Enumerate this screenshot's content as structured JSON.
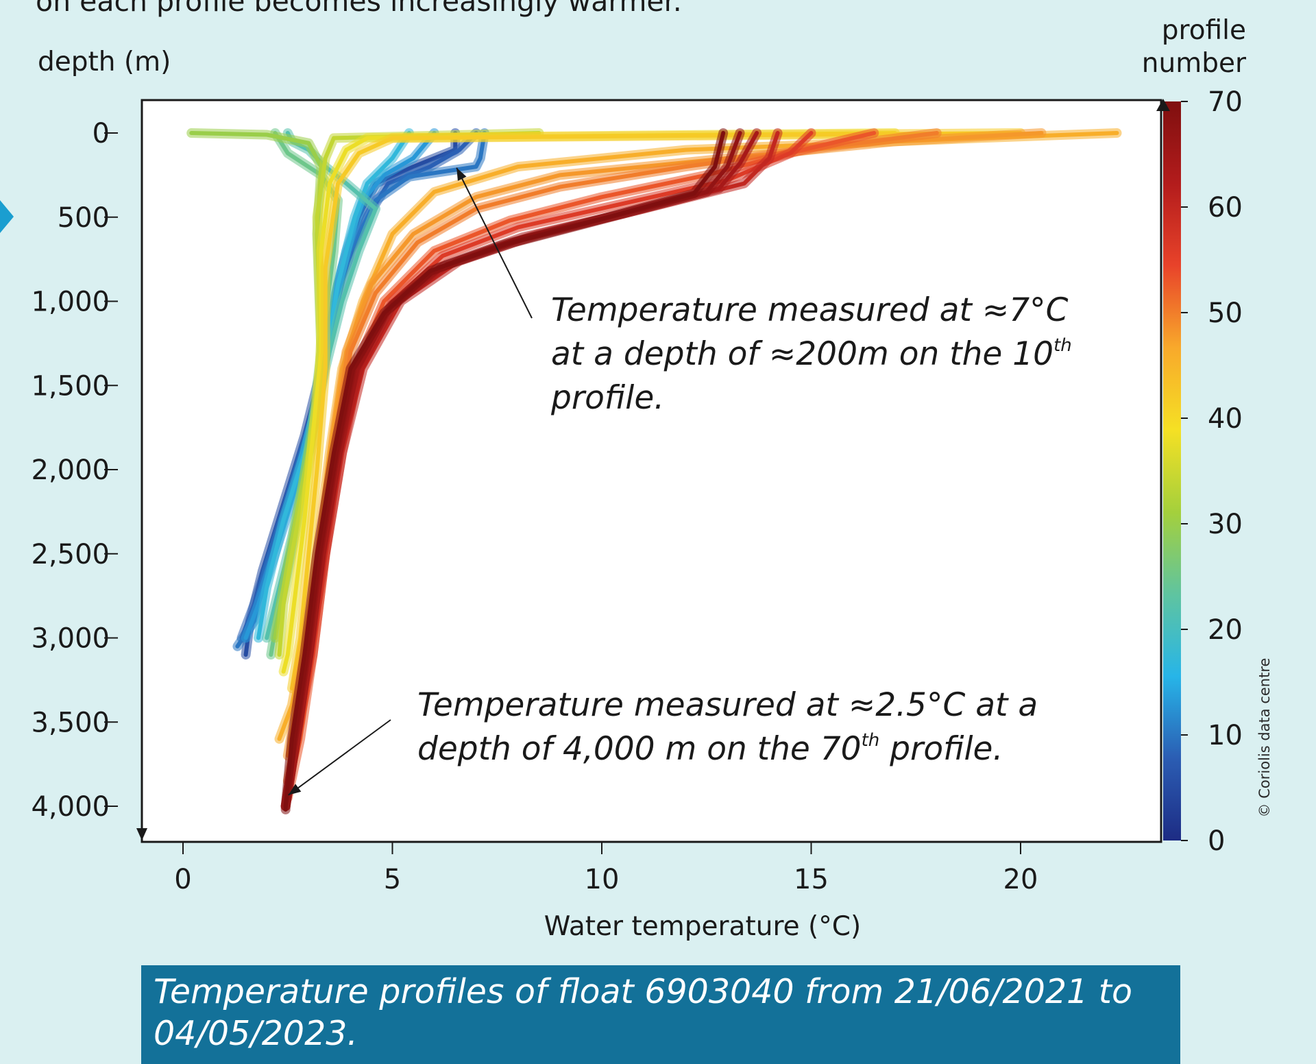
{
  "intro_text": "on each profile becomes increasingly warmer.",
  "caption": "Temperature profiles of float 6903040 from 21/06/2021 to 04/05/2023.",
  "credit": "© Coriolis data centre",
  "colors": {
    "background": "#daf0f1",
    "caption_bg": "#137199",
    "marker": "#1a9ed0",
    "colormap": [
      "#1d2c84",
      "#2b5db3",
      "#27b5e8",
      "#5fc4a0",
      "#a4d03c",
      "#f5e024",
      "#f8a92b",
      "#e8432a",
      "#b31c1c",
      "#7f0f0f"
    ]
  },
  "chart_data": {
    "type": "line",
    "xlabel": "Water temperature (°C)",
    "ylabel": "depth (m)",
    "xlim": [
      -1,
      23.3
    ],
    "ylim": [
      4200,
      -190
    ],
    "y_inverted": true,
    "x_ticks": [
      0,
      5,
      10,
      15,
      20
    ],
    "x_tick_labels": [
      "0",
      "5",
      "10",
      "15",
      "20"
    ],
    "y_ticks": [
      0,
      500,
      1000,
      1500,
      2000,
      2500,
      3000,
      3500,
      4000
    ],
    "y_tick_labels": [
      "0",
      "500",
      "1,000",
      "1,500",
      "2,000",
      "2,500",
      "3,000",
      "3,500",
      "4,000"
    ],
    "colorbar": {
      "label_line1": "profile",
      "label_line2": "number",
      "range": [
        0,
        70
      ],
      "ticks": [
        0,
        10,
        20,
        30,
        40,
        50,
        60,
        70
      ],
      "tick_labels": [
        "0",
        "10",
        "20",
        "30",
        "40",
        "50",
        "60",
        "70"
      ]
    },
    "profiles": [
      {
        "profile": 5,
        "points": [
          [
            6.5,
            0
          ],
          [
            6.5,
            100
          ],
          [
            5.5,
            200
          ],
          [
            4.6,
            300
          ],
          [
            4.2,
            500
          ],
          [
            3.8,
            800
          ],
          [
            3.4,
            1300
          ],
          [
            2.9,
            1800
          ],
          [
            2.4,
            2200
          ],
          [
            1.9,
            2600
          ],
          [
            1.6,
            2900
          ],
          [
            1.5,
            3100
          ]
        ]
      },
      {
        "profile": 8,
        "points": [
          [
            7,
            0
          ],
          [
            6.6,
            100
          ],
          [
            5.9,
            200
          ],
          [
            4.9,
            300
          ],
          [
            4.4,
            500
          ],
          [
            3.7,
            900
          ],
          [
            3.3,
            1500
          ],
          [
            2.6,
            2100
          ],
          [
            2.1,
            2500
          ],
          [
            1.7,
            2800
          ],
          [
            1.4,
            3000
          ]
        ]
      },
      {
        "profile": 10,
        "points": [
          [
            7.2,
            0
          ],
          [
            7.1,
            150
          ],
          [
            7,
            200
          ],
          [
            5.4,
            260
          ],
          [
            4.6,
            400
          ],
          [
            4,
            700
          ],
          [
            3.5,
            1200
          ],
          [
            3.1,
            1700
          ],
          [
            2.5,
            2200
          ],
          [
            2,
            2600
          ],
          [
            1.7,
            2900
          ],
          [
            1.3,
            3050
          ]
        ]
      },
      {
        "profile": 13,
        "points": [
          [
            6,
            0
          ],
          [
            5.5,
            150
          ],
          [
            4.8,
            250
          ],
          [
            4.3,
            400
          ],
          [
            3.9,
            700
          ],
          [
            3.5,
            1100
          ],
          [
            3.2,
            1600
          ],
          [
            2.7,
            2100
          ],
          [
            2.2,
            2500
          ],
          [
            1.8,
            2800
          ],
          [
            1.5,
            3000
          ]
        ]
      },
      {
        "profile": 17,
        "points": [
          [
            5.4,
            0
          ],
          [
            5,
            150
          ],
          [
            4.4,
            300
          ],
          [
            4.1,
            500
          ],
          [
            3.7,
            900
          ],
          [
            3.3,
            1500
          ],
          [
            2.9,
            1900
          ],
          [
            2.4,
            2300
          ],
          [
            2,
            2700
          ],
          [
            1.8,
            3000
          ]
        ]
      },
      {
        "profile": 22,
        "points": [
          [
            2.5,
            0
          ],
          [
            2.6,
            50
          ],
          [
            3,
            100
          ],
          [
            3.4,
            200
          ],
          [
            3.9,
            300
          ],
          [
            4.6,
            450
          ],
          [
            4.2,
            700
          ],
          [
            3.8,
            1000
          ],
          [
            3.4,
            1400
          ],
          [
            3,
            1900
          ],
          [
            2.6,
            2400
          ],
          [
            2.2,
            2800
          ],
          [
            2,
            3000
          ]
        ]
      },
      {
        "profile": 25,
        "points": [
          [
            2.2,
            0
          ],
          [
            2.5,
            120
          ],
          [
            3.3,
            250
          ],
          [
            3.7,
            400
          ],
          [
            3.6,
            700
          ],
          [
            3.4,
            1100
          ],
          [
            3.1,
            1700
          ],
          [
            2.8,
            2200
          ],
          [
            2.5,
            2600
          ],
          [
            2.2,
            2950
          ],
          [
            2.1,
            3100
          ]
        ]
      },
      {
        "profile": 30,
        "points": [
          [
            0.2,
            0
          ],
          [
            2,
            10
          ],
          [
            3,
            60
          ],
          [
            3.3,
            200
          ],
          [
            3.2,
            600
          ],
          [
            3.3,
            1300
          ],
          [
            3.3,
            1500
          ],
          [
            3,
            1900
          ],
          [
            2.7,
            2300
          ],
          [
            2.4,
            2700
          ],
          [
            2.2,
            3000
          ]
        ]
      },
      {
        "profile": 34,
        "points": [
          [
            8.5,
            0
          ],
          [
            3.6,
            30
          ],
          [
            3.4,
            150
          ],
          [
            3.2,
            500
          ],
          [
            3.3,
            1200
          ],
          [
            3.2,
            1700
          ],
          [
            2.9,
            2100
          ],
          [
            2.6,
            2500
          ],
          [
            2.4,
            2800
          ],
          [
            2.3,
            3100
          ]
        ]
      },
      {
        "profile": 38,
        "points": [
          [
            17,
            0
          ],
          [
            4.4,
            30
          ],
          [
            3.9,
            100
          ],
          [
            3.5,
            300
          ],
          [
            3.3,
            700
          ],
          [
            3.3,
            1300
          ],
          [
            3.1,
            1800
          ],
          [
            2.9,
            2300
          ],
          [
            2.7,
            2700
          ],
          [
            2.5,
            3100
          ],
          [
            2.4,
            3200
          ]
        ]
      },
      {
        "profile": 42,
        "points": [
          [
            20,
            0
          ],
          [
            5,
            30
          ],
          [
            4.2,
            120
          ],
          [
            3.7,
            300
          ],
          [
            3.4,
            800
          ],
          [
            3.4,
            1400
          ],
          [
            3.2,
            2000
          ],
          [
            3,
            2500
          ],
          [
            2.8,
            3000
          ],
          [
            2.6,
            3300
          ]
        ]
      },
      {
        "profile": 46,
        "points": [
          [
            22.3,
            0
          ],
          [
            19,
            30
          ],
          [
            12,
            100
          ],
          [
            8,
            200
          ],
          [
            6,
            350
          ],
          [
            5,
            600
          ],
          [
            4.3,
            1000
          ],
          [
            3.8,
            1400
          ],
          [
            3.5,
            1900
          ],
          [
            3.2,
            2500
          ],
          [
            2.9,
            3000
          ],
          [
            2.6,
            3400
          ],
          [
            2.3,
            3600
          ]
        ]
      },
      {
        "profile": 48,
        "points": [
          [
            20.5,
            0
          ],
          [
            17,
            50
          ],
          [
            13,
            150
          ],
          [
            9,
            250
          ],
          [
            7,
            380
          ],
          [
            5.5,
            600
          ],
          [
            4.5,
            900
          ],
          [
            3.9,
            1300
          ],
          [
            3.6,
            1800
          ],
          [
            3.3,
            2400
          ],
          [
            3,
            3000
          ],
          [
            2.7,
            3400
          ],
          [
            2.5,
            3700
          ]
        ]
      },
      {
        "profile": 50,
        "points": [
          [
            18,
            0
          ],
          [
            15.5,
            80
          ],
          [
            12,
            200
          ],
          [
            9,
            320
          ],
          [
            7,
            450
          ],
          [
            5.6,
            650
          ],
          [
            4.6,
            950
          ],
          [
            4,
            1300
          ],
          [
            3.7,
            1800
          ],
          [
            3.4,
            2400
          ],
          [
            3.1,
            3000
          ],
          [
            2.8,
            3500
          ],
          [
            2.5,
            3850
          ]
        ]
      },
      {
        "profile": 53,
        "points": [
          [
            16.5,
            0
          ],
          [
            14.8,
            100
          ],
          [
            12.5,
            250
          ],
          [
            10,
            380
          ],
          [
            7.8,
            520
          ],
          [
            6,
            700
          ],
          [
            4.8,
            1000
          ],
          [
            4.1,
            1400
          ],
          [
            3.7,
            1900
          ],
          [
            3.4,
            2500
          ],
          [
            3.1,
            3100
          ],
          [
            2.8,
            3600
          ],
          [
            2.5,
            3950
          ]
        ]
      },
      {
        "profile": 56,
        "points": [
          [
            15,
            0
          ],
          [
            14.5,
            120
          ],
          [
            13,
            280
          ],
          [
            10.5,
            420
          ],
          [
            8,
            560
          ],
          [
            6.2,
            730
          ],
          [
            5,
            1000
          ],
          [
            4.2,
            1400
          ],
          [
            3.8,
            1900
          ],
          [
            3.4,
            2500
          ],
          [
            3.1,
            3100
          ],
          [
            2.7,
            3600
          ],
          [
            2.45,
            4000
          ]
        ]
      },
      {
        "profile": 60,
        "points": [
          [
            14.2,
            0
          ],
          [
            14,
            150
          ],
          [
            13.4,
            300
          ],
          [
            11,
            450
          ],
          [
            8.5,
            600
          ],
          [
            6.6,
            760
          ],
          [
            5.2,
            1000
          ],
          [
            4.3,
            1400
          ],
          [
            3.8,
            1900
          ],
          [
            3.4,
            2500
          ],
          [
            3,
            3100
          ],
          [
            2.7,
            3600
          ],
          [
            2.45,
            4000
          ]
        ]
      },
      {
        "profile": 64,
        "points": [
          [
            13.7,
            0
          ],
          [
            13.3,
            180
          ],
          [
            12.8,
            330
          ],
          [
            10.5,
            480
          ],
          [
            8.1,
            620
          ],
          [
            6.3,
            780
          ],
          [
            5,
            1020
          ],
          [
            4.2,
            1400
          ],
          [
            3.7,
            1900
          ],
          [
            3.3,
            2500
          ],
          [
            3,
            3100
          ],
          [
            2.7,
            3600
          ],
          [
            2.45,
            4000
          ]
        ]
      },
      {
        "profile": 67,
        "points": [
          [
            13.3,
            0
          ],
          [
            13,
            200
          ],
          [
            12.5,
            350
          ],
          [
            10.2,
            500
          ],
          [
            7.9,
            650
          ],
          [
            6.1,
            800
          ],
          [
            4.9,
            1050
          ],
          [
            4.1,
            1400
          ],
          [
            3.7,
            1900
          ],
          [
            3.3,
            2500
          ],
          [
            3,
            3100
          ],
          [
            2.7,
            3600
          ],
          [
            2.45,
            4000
          ]
        ]
      },
      {
        "profile": 70,
        "points": [
          [
            12.9,
            0
          ],
          [
            12.7,
            200
          ],
          [
            12.2,
            360
          ],
          [
            10,
            510
          ],
          [
            7.7,
            660
          ],
          [
            5.9,
            820
          ],
          [
            4.8,
            1070
          ],
          [
            4,
            1400
          ],
          [
            3.6,
            1900
          ],
          [
            3.2,
            2500
          ],
          [
            2.9,
            3100
          ],
          [
            2.6,
            3600
          ],
          [
            2.45,
            4000
          ],
          [
            2.45,
            4020
          ]
        ]
      }
    ],
    "annotations": [
      {
        "lines": [
          "Temperature measured at ≈7°C",
          "at a depth of ≈200m on the 10",
          "profile."
        ],
        "superscript": "th",
        "point": [
          6.5,
          190
        ]
      },
      {
        "lines": [
          "Temperature measured at ≈2.5°C at a",
          "depth of 4,000 m on the 70",
          " profile."
        ],
        "superscript": "th",
        "point": [
          2.45,
          3950
        ]
      }
    ]
  }
}
